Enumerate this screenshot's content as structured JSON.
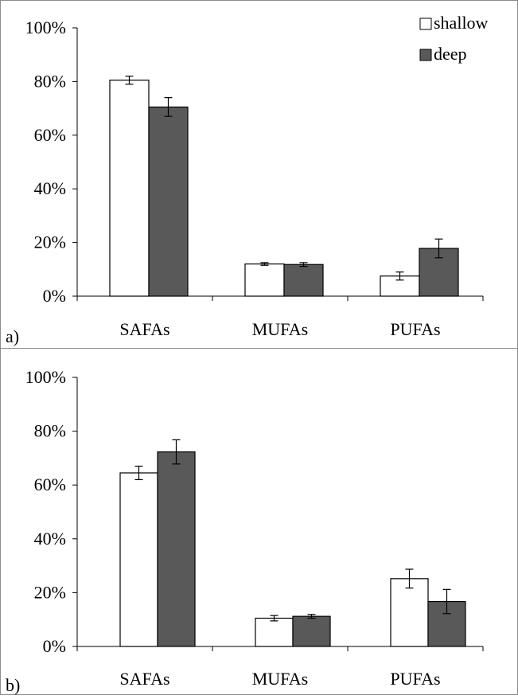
{
  "colors": {
    "shallow": "#ffffff",
    "deep": "#595959",
    "outline": "#000000",
    "frame": "#8c8c8c"
  },
  "legend": {
    "items": [
      {
        "label": "shallow",
        "color": "#ffffff"
      },
      {
        "label": "deep",
        "color": "#595959"
      }
    ],
    "placement": "top-right"
  },
  "chart_data": [
    {
      "type": "bar",
      "panel_label": "a)",
      "categories": [
        "SAFAs",
        "MUFAs",
        "PUFAs"
      ],
      "series": [
        {
          "name": "shallow",
          "values": [
            80.5,
            12.0,
            7.5
          ],
          "errors": [
            1.5,
            0.5,
            1.5
          ]
        },
        {
          "name": "deep",
          "values": [
            70.5,
            11.8,
            17.8
          ],
          "errors": [
            3.5,
            0.7,
            3.5
          ]
        }
      ],
      "yticks": [
        "0%",
        "20%",
        "40%",
        "60%",
        "80%",
        "100%"
      ],
      "ylim": [
        0,
        100
      ],
      "grid": false
    },
    {
      "type": "bar",
      "panel_label": "b)",
      "categories": [
        "SAFAs",
        "MUFAs",
        "PUFAs"
      ],
      "series": [
        {
          "name": "shallow",
          "values": [
            64.5,
            10.5,
            25.2
          ],
          "errors": [
            2.5,
            1.0,
            3.5
          ]
        },
        {
          "name": "deep",
          "values": [
            72.3,
            11.2,
            16.7
          ],
          "errors": [
            4.5,
            0.7,
            4.5
          ]
        }
      ],
      "yticks": [
        "0%",
        "20%",
        "40%",
        "60%",
        "80%",
        "100%"
      ],
      "ylim": [
        0,
        100
      ],
      "grid": false
    }
  ]
}
